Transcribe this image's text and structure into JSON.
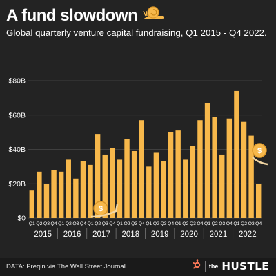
{
  "header": {
    "title": "A fund slowdown",
    "subtitle": "Global quarterly venture capital fundraising, Q1 2015 - Q4 2022."
  },
  "footer": {
    "source": "DATA: Preqin via The Wall Street Journal",
    "brand_prefix": "the",
    "brand_name": "HUSTLE"
  },
  "colors": {
    "background": "#232323",
    "bar": "#F7B84B",
    "grid": "#4a4a4a",
    "text": "#ffffff",
    "hubspot": "#FF7A59"
  },
  "icons": [
    "snail-icon",
    "coin-icon",
    "hubspot-logo-icon"
  ],
  "chart_data": {
    "type": "bar",
    "categories": [
      "Q1",
      "Q2",
      "Q3",
      "Q4",
      "Q1",
      "Q2",
      "Q3",
      "Q4",
      "Q1",
      "Q2",
      "Q3",
      "Q4",
      "Q1",
      "Q2",
      "Q3",
      "Q4",
      "Q1",
      "Q2",
      "Q3",
      "Q4",
      "Q1",
      "Q2",
      "Q3",
      "Q4",
      "Q1",
      "Q2",
      "Q3",
      "Q4",
      "Q1",
      "Q2",
      "Q3",
      "Q4"
    ],
    "years": [
      "2015",
      "2016",
      "2017",
      "2018",
      "2019",
      "2020",
      "2021",
      "2022"
    ],
    "values": [
      16,
      27,
      20,
      28,
      27,
      34,
      23,
      33,
      31,
      49,
      37,
      41,
      34,
      46,
      39,
      57,
      30,
      38,
      33,
      50,
      51,
      34,
      42,
      57,
      67,
      59,
      37,
      58,
      74,
      56,
      48,
      20
    ],
    "yticks": [
      "$0",
      "$20B",
      "$40B",
      "$60B",
      "$80B"
    ],
    "ylim": [
      0,
      80
    ],
    "grid": true
  }
}
